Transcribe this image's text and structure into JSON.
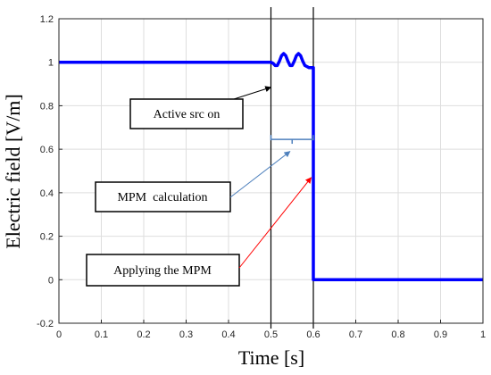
{
  "chart_data": {
    "type": "line",
    "xlabel": "Time [s]",
    "ylabel": "Electric field [V/m]",
    "xlim": [
      0,
      1
    ],
    "ylim": [
      -0.2,
      1.2
    ],
    "xticks": [
      0,
      0.1,
      0.2,
      0.3,
      0.4,
      0.5,
      0.6,
      0.7,
      0.8,
      0.9,
      1
    ],
    "xtick_labels": [
      "0",
      "0.1",
      "0.2",
      "0.3",
      "0.4",
      "0.5",
      "0.6",
      "0.7",
      "0.8",
      "0.9",
      "1"
    ],
    "yticks": [
      -0.2,
      0,
      0.2,
      0.4,
      0.6,
      0.8,
      1,
      1.2
    ],
    "ytick_labels": [
      "-0.2",
      "0",
      "0.2",
      "0.4",
      "0.6",
      "0.8",
      "1",
      "1.2"
    ],
    "grid": true,
    "series": [
      {
        "color": "#0000ff",
        "x": [
          0,
          0.5,
          0.505,
          0.51,
          0.515,
          0.52,
          0.525,
          0.53,
          0.535,
          0.54,
          0.545,
          0.55,
          0.555,
          0.56,
          0.565,
          0.57,
          0.575,
          0.58,
          0.585,
          0.59,
          0.595,
          0.6,
          0.6,
          1
        ],
        "y": [
          1,
          1,
          0.995,
          0.985,
          0.985,
          1.005,
          1.03,
          1.04,
          1.03,
          1.005,
          0.985,
          0.985,
          1.005,
          1.03,
          1.04,
          1.03,
          1.005,
          0.985,
          0.98,
          0.975,
          0.975,
          0.975,
          0,
          0
        ]
      }
    ],
    "vertical_lines": [
      0.5,
      0.6
    ],
    "bracket": {
      "x_start": 0.5,
      "x_end": 0.6,
      "y": 0.645,
      "tick_y": 0.625,
      "color": "#4f81bd"
    },
    "annotations": [
      {
        "text": "Active src on",
        "arrow_color": "#000000",
        "arrow_to": [
          0.5,
          0.885
        ]
      },
      {
        "text": "MPM  calculation",
        "arrow_color": "#4f81bd",
        "arrow_to": [
          0.545,
          0.59
        ]
      },
      {
        "text": "Applying the MPM",
        "arrow_color": "#ff0000",
        "arrow_to": [
          0.595,
          0.47
        ]
      }
    ]
  }
}
